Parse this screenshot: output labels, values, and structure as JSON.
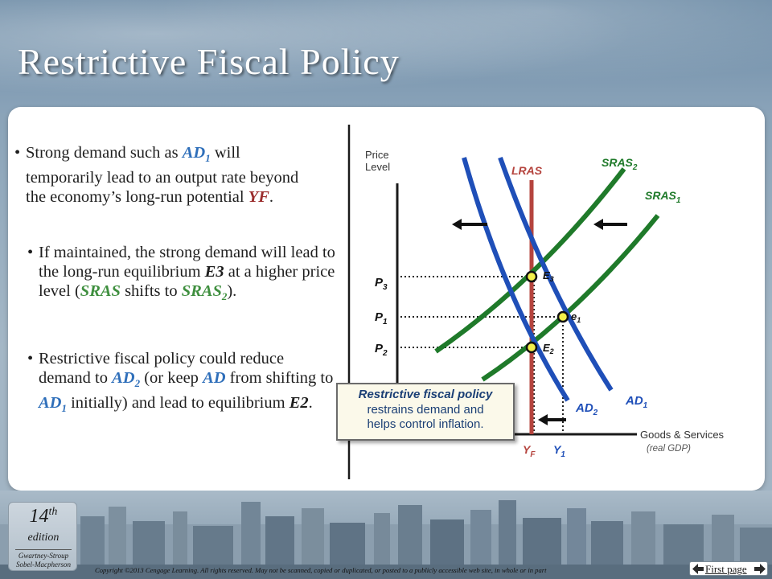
{
  "slide": {
    "title": "Restrictive Fiscal Policy"
  },
  "bullets": {
    "b1_pre": "Strong demand such as ",
    "b1_ad": "AD",
    "b1_ad_sub": "1",
    "b1_mid": " will temporarily lead to an output rate beyond the economy’s long-run potential ",
    "b1_yf": "YF",
    "b1_end": ".",
    "b2_pre": "If maintained, the strong demand will lead to the long-run equilibrium ",
    "b2_e3": "E3",
    "b2_mid": " at a higher price level (",
    "b2_sras": "SRAS",
    "b2_shifts": " shifts to ",
    "b2_sras2": "SRAS",
    "b2_sras2_sub": "2",
    "b2_end": ").",
    "b3_pre": "Restrictive fiscal policy could reduce demand to ",
    "b3_ad2": "AD",
    "b3_ad2_sub": "2",
    "b3_mid": " (or keep ",
    "b3_ad": "AD",
    "b3_mid2": " from shifting to ",
    "b3_ad1": "AD",
    "b3_ad1_sub": "1",
    "b3_mid3": " initially) and lead to equilibrium ",
    "b3_e2": "E2",
    "b3_end": "."
  },
  "callout": {
    "line1": "Restrictive fiscal policy",
    "line2": "restrains demand and",
    "line3": "helps control inflation."
  },
  "diagram": {
    "y_axis_label_1": "Price",
    "y_axis_label_2": "Level",
    "x_axis_label": "Goods & Services",
    "x_axis_sublabel": "(real GDP)",
    "lras": "LRAS",
    "sras": "SRAS",
    "sras1_sub": "1",
    "sras2_sub": "2",
    "ad": "AD",
    "ad1_sub": "1",
    "ad2_sub": "2",
    "p": "P",
    "p1_sub": "1",
    "p2_sub": "2",
    "p3_sub": "3",
    "y": "Y",
    "yf_sub": "F",
    "y1_sub": "1",
    "e3": "E",
    "e3_sub": "3",
    "e2": "E",
    "e2_sub": "2",
    "e1": "e",
    "e1_sub": "1",
    "colors": {
      "ad": "#1f4fb8",
      "sras": "#1f7a2a",
      "lras": "#b5443e",
      "point": "#f3f04a"
    }
  },
  "footer": {
    "edition_num": "14",
    "edition_sup": "th",
    "edition_word": "edition",
    "authors_1": "Gwartney-Stroup",
    "authors_2": "Sobel-Macpherson",
    "copyright": "Copyright ©2013 Cengage Learning. All rights reserved. May not be scanned, copied or duplicated, or posted to a publicly accessible web site, in whole or in part",
    "first_page": "First page"
  }
}
